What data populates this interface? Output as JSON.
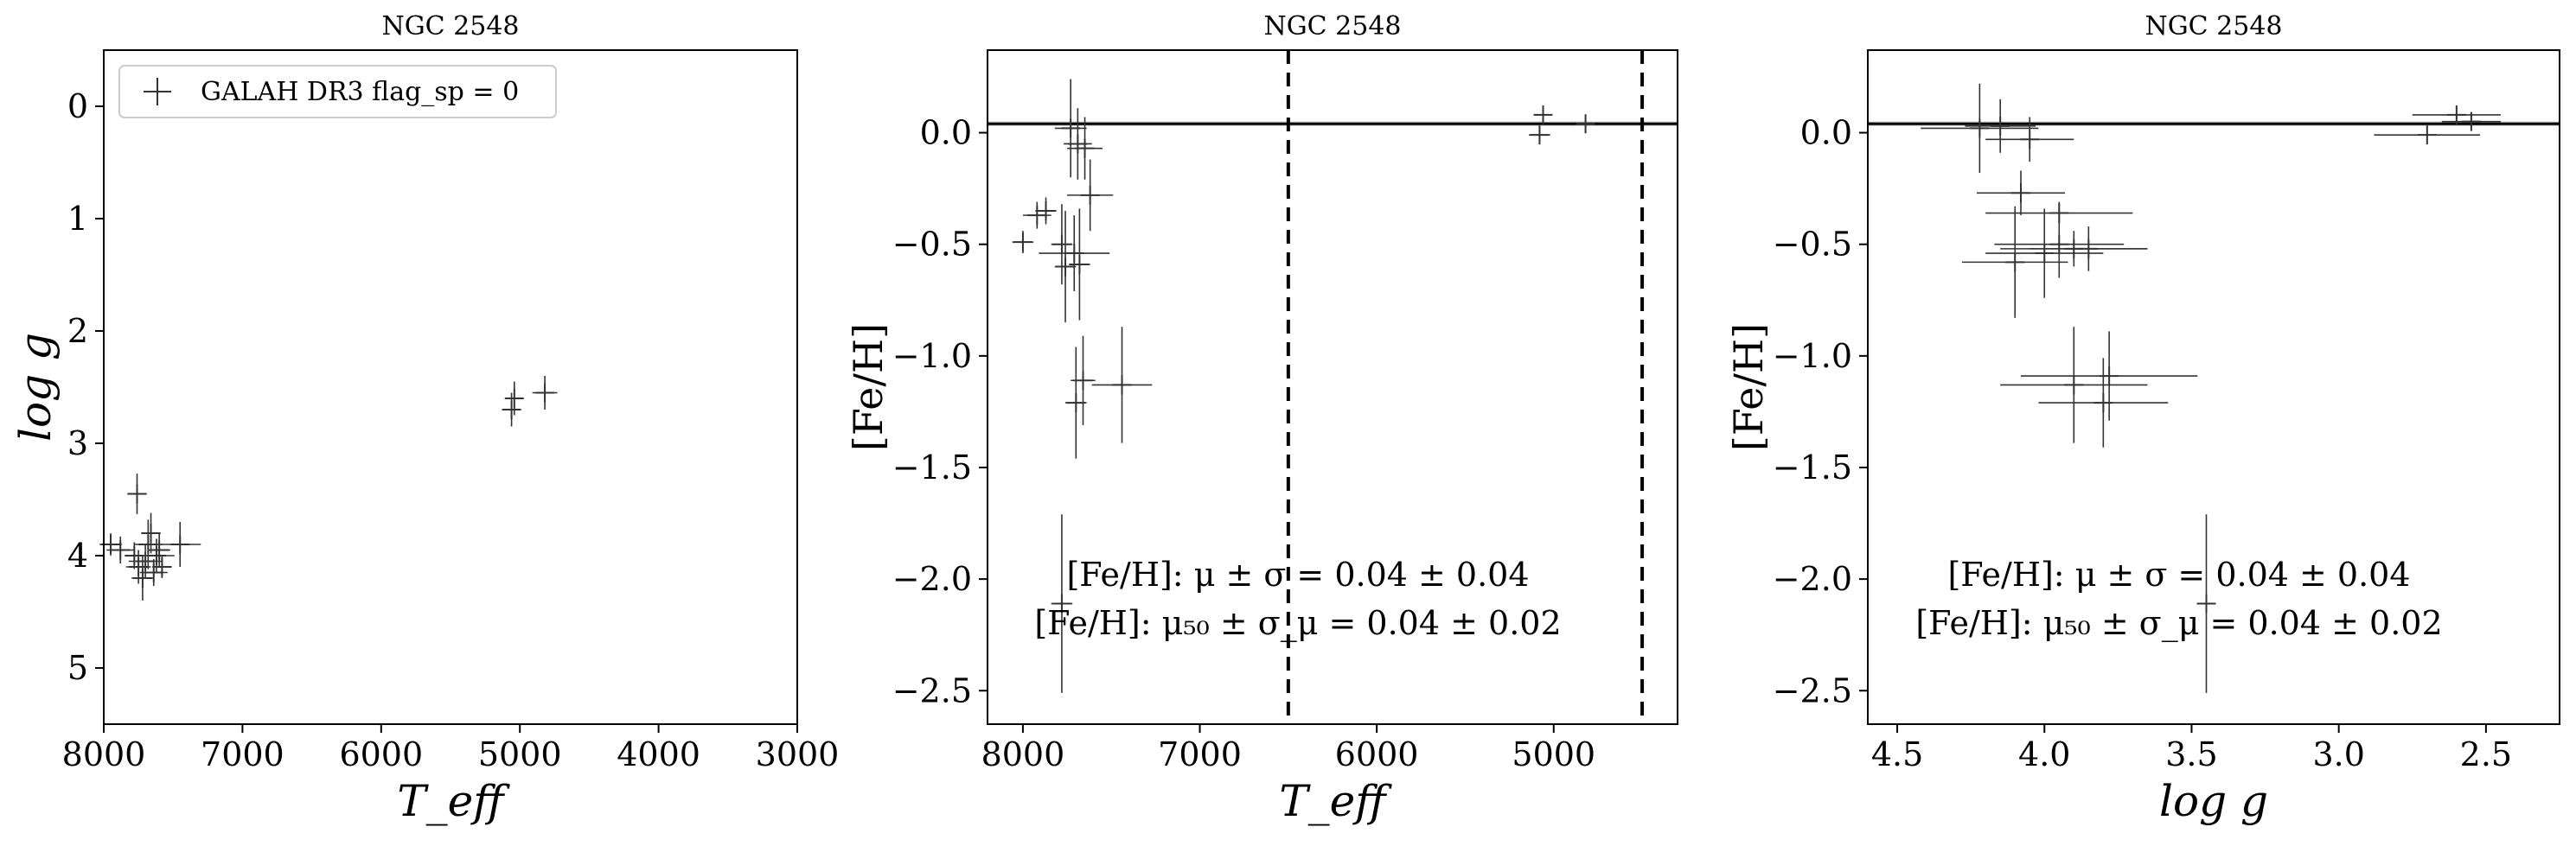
{
  "figure": {
    "legend_label": "GALAH DR3 flag_sp = 0",
    "colors": {
      "points": "#333333",
      "mean_line": "#000000",
      "band": "#aaaaaa",
      "cut_line": "#000000"
    }
  },
  "chart_data": [
    {
      "type": "scatter",
      "title": "NGC 2548",
      "xlabel": "T_eff",
      "ylabel": "log g",
      "xlim": [
        8000,
        3000
      ],
      "ylim": [
        5.5,
        -0.5
      ],
      "x_inverted": true,
      "y_inverted": true,
      "xticks": [
        8000,
        7000,
        6000,
        5000,
        4000,
        3000
      ],
      "xtick_labels": [
        "8000",
        "7000",
        "6000",
        "5000",
        "4000",
        "3000"
      ],
      "yticks": [
        0,
        1,
        2,
        3,
        4,
        5
      ],
      "ytick_labels": [
        "0",
        "1",
        "2",
        "3",
        "4",
        "5"
      ],
      "legend": {
        "placement": "top-left",
        "entries": [
          "GALAH DR3 flag_sp = 0"
        ]
      },
      "series": [
        {
          "name": "GALAH DR3 flag_sp = 0",
          "points": [
            {
              "x": 7950,
              "y": 3.9,
              "xerr": 80,
              "yerr": 0.1
            },
            {
              "x": 7880,
              "y": 3.95,
              "xerr": 100,
              "yerr": 0.12
            },
            {
              "x": 7780,
              "y": 4.0,
              "xerr": 60,
              "yerr": 0.12
            },
            {
              "x": 7760,
              "y": 3.45,
              "xerr": 70,
              "yerr": 0.18
            },
            {
              "x": 7750,
              "y": 4.1,
              "xerr": 90,
              "yerr": 0.15
            },
            {
              "x": 7720,
              "y": 4.2,
              "xerr": 80,
              "yerr": 0.2
            },
            {
              "x": 7700,
              "y": 4.05,
              "xerr": 120,
              "yerr": 0.15
            },
            {
              "x": 7680,
              "y": 3.9,
              "xerr": 100,
              "yerr": 0.22
            },
            {
              "x": 7660,
              "y": 3.8,
              "xerr": 70,
              "yerr": 0.18
            },
            {
              "x": 7640,
              "y": 4.15,
              "xerr": 100,
              "yerr": 0.12
            },
            {
              "x": 7620,
              "y": 4.0,
              "xerr": 130,
              "yerr": 0.15
            },
            {
              "x": 7600,
              "y": 3.95,
              "xerr": 80,
              "yerr": 0.15
            },
            {
              "x": 7580,
              "y": 4.1,
              "xerr": 70,
              "yerr": 0.1
            },
            {
              "x": 7450,
              "y": 3.9,
              "xerr": 150,
              "yerr": 0.2
            },
            {
              "x": 5060,
              "y": 2.7,
              "xerr": 60,
              "yerr": 0.15
            },
            {
              "x": 5040,
              "y": 2.6,
              "xerr": 50,
              "yerr": 0.15
            },
            {
              "x": 4820,
              "y": 2.55,
              "xerr": 90,
              "yerr": 0.15
            }
          ]
        }
      ]
    },
    {
      "type": "scatter",
      "title": "NGC 2548",
      "xlabel": "T_eff",
      "ylabel": "[Fe/H]",
      "xlim": [
        8200,
        4300
      ],
      "ylim": [
        -2.65,
        0.37
      ],
      "x_inverted": true,
      "xticks": [
        8000,
        7000,
        6000,
        5000
      ],
      "xtick_labels": [
        "8000",
        "7000",
        "6000",
        "5000"
      ],
      "yticks": [
        0.0,
        -0.5,
        -1.0,
        -1.5,
        -2.0,
        -2.5
      ],
      "ytick_labels": [
        "0.0",
        "−0.5",
        "−1.0",
        "−1.5",
        "−2.0",
        "−2.5"
      ],
      "mean_line": 0.04,
      "mean_band": 0.02,
      "vertical_lines": [
        6500,
        4500
      ],
      "annotations": [
        "[Fe/H]: μ ± σ = 0.04 ± 0.04",
        "[Fe/H]: μ₅₀ ± σ_μ = 0.04 ± 0.02"
      ],
      "series": [
        {
          "points": [
            {
              "x": 8000,
              "y": -0.49,
              "xerr": 60,
              "yerr": 0.05
            },
            {
              "x": 7920,
              "y": -0.37,
              "xerr": 80,
              "yerr": 0.06
            },
            {
              "x": 7870,
              "y": -0.35,
              "xerr": 60,
              "yerr": 0.06
            },
            {
              "x": 7780,
              "y": -0.5,
              "xerr": 60,
              "yerr": 0.18
            },
            {
              "x": 7760,
              "y": -0.6,
              "xerr": 60,
              "yerr": 0.25
            },
            {
              "x": 7730,
              "y": 0.02,
              "xerr": 90,
              "yerr": 0.22
            },
            {
              "x": 7710,
              "y": -0.54,
              "xerr": 200,
              "yerr": 0.17
            },
            {
              "x": 7690,
              "y": -0.05,
              "xerr": 80,
              "yerr": 0.16
            },
            {
              "x": 7680,
              "y": -0.59,
              "xerr": 60,
              "yerr": 0.25
            },
            {
              "x": 7650,
              "y": -0.07,
              "xerr": 100,
              "yerr": 0.14
            },
            {
              "x": 7620,
              "y": -0.28,
              "xerr": 130,
              "yerr": 0.16
            },
            {
              "x": 7700,
              "y": -1.21,
              "xerr": 60,
              "yerr": 0.25
            },
            {
              "x": 7660,
              "y": -1.11,
              "xerr": 70,
              "yerr": 0.2
            },
            {
              "x": 7440,
              "y": -1.13,
              "xerr": 170,
              "yerr": 0.26
            },
            {
              "x": 7780,
              "y": -2.11,
              "xerr": 60,
              "yerr": 0.4
            },
            {
              "x": 5080,
              "y": -0.01,
              "xerr": 60,
              "yerr": 0.04
            },
            {
              "x": 5060,
              "y": 0.08,
              "xerr": 40,
              "yerr": 0.04
            },
            {
              "x": 4820,
              "y": 0.04,
              "xerr": 10,
              "yerr": 0.04
            }
          ]
        }
      ]
    },
    {
      "type": "scatter",
      "title": "NGC 2548",
      "xlabel": "log g",
      "ylabel": "[Fe/H]",
      "xlim": [
        4.6,
        2.25
      ],
      "ylim": [
        -2.65,
        0.37
      ],
      "x_inverted": true,
      "xticks": [
        4.5,
        4.0,
        3.5,
        3.0,
        2.5
      ],
      "xtick_labels": [
        "4.5",
        "4.0",
        "3.5",
        "3.0",
        "2.5"
      ],
      "yticks": [
        0.0,
        -0.5,
        -1.0,
        -1.5,
        -2.0,
        -2.5
      ],
      "ytick_labels": [
        "0.0",
        "−0.5",
        "−1.0",
        "−1.5",
        "−2.0",
        "−2.5"
      ],
      "mean_line": 0.04,
      "mean_band": 0.02,
      "annotations": [
        "[Fe/H]: μ ± σ = 0.04 ± 0.04",
        "[Fe/H]: μ₅₀ ± σ_μ = 0.04 ± 0.02"
      ],
      "series": [
        {
          "points": [
            {
              "x": 4.22,
              "y": 0.02,
              "xerr": 0.2,
              "yerr": 0.2
            },
            {
              "x": 4.15,
              "y": 0.03,
              "xerr": 0.12,
              "yerr": 0.12
            },
            {
              "x": 4.05,
              "y": -0.03,
              "xerr": 0.15,
              "yerr": 0.1
            },
            {
              "x": 4.08,
              "y": -0.27,
              "xerr": 0.15,
              "yerr": 0.1
            },
            {
              "x": 3.95,
              "y": -0.36,
              "xerr": 0.25,
              "yerr": 0.05
            },
            {
              "x": 3.95,
              "y": -0.5,
              "xerr": 0.22,
              "yerr": 0.15
            },
            {
              "x": 3.9,
              "y": -0.52,
              "xerr": 0.25,
              "yerr": 0.08
            },
            {
              "x": 4.0,
              "y": -0.54,
              "xerr": 0.2,
              "yerr": 0.2
            },
            {
              "x": 4.1,
              "y": -0.58,
              "xerr": 0.18,
              "yerr": 0.25
            },
            {
              "x": 3.85,
              "y": -0.52,
              "xerr": 0.2,
              "yerr": 0.1
            },
            {
              "x": 3.9,
              "y": -1.13,
              "xerr": 0.25,
              "yerr": 0.26
            },
            {
              "x": 3.8,
              "y": -1.21,
              "xerr": 0.22,
              "yerr": 0.2
            },
            {
              "x": 3.78,
              "y": -1.09,
              "xerr": 0.3,
              "yerr": 0.2
            },
            {
              "x": 3.45,
              "y": -2.11,
              "xerr": 0.02,
              "yerr": 0.4
            },
            {
              "x": 2.7,
              "y": -0.01,
              "xerr": 0.18,
              "yerr": 0.04
            },
            {
              "x": 2.6,
              "y": 0.08,
              "xerr": 0.15,
              "yerr": 0.03
            },
            {
              "x": 2.55,
              "y": 0.05,
              "xerr": 0.1,
              "yerr": 0.03
            }
          ]
        }
      ]
    }
  ]
}
